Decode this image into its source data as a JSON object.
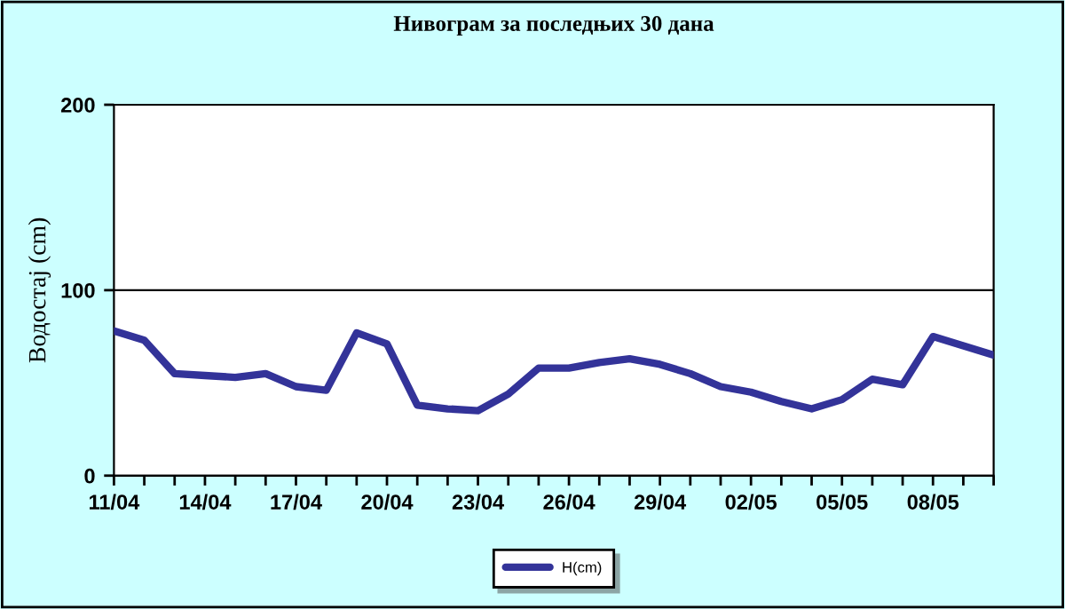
{
  "chart_data": {
    "type": "line",
    "title": "Нивограм за последњих 30 дана",
    "ylabel": "Водостај (cm)",
    "categories": [
      "11/04",
      null,
      null,
      "14/04",
      null,
      null,
      "17/04",
      null,
      null,
      "20/04",
      null,
      null,
      "23/04",
      null,
      null,
      "26/04",
      null,
      null,
      "29/04",
      null,
      null,
      "02/05",
      null,
      null,
      "05/05",
      null,
      null,
      "08/05",
      null,
      null
    ],
    "series": [
      {
        "name": "H(cm)",
        "color": "#333399",
        "values": [
          78,
          73,
          55,
          54,
          53,
          55,
          48,
          46,
          77,
          71,
          38,
          36,
          35,
          44,
          58,
          58,
          61,
          63,
          60,
          55,
          48,
          45,
          40,
          36,
          41,
          52,
          49,
          75,
          70,
          65
        ]
      }
    ],
    "ylim": [
      0,
      200
    ],
    "yticks": [
      0,
      100,
      200
    ],
    "grid": "y",
    "legend": "bottom",
    "marker": "none",
    "line_style": "solid"
  }
}
